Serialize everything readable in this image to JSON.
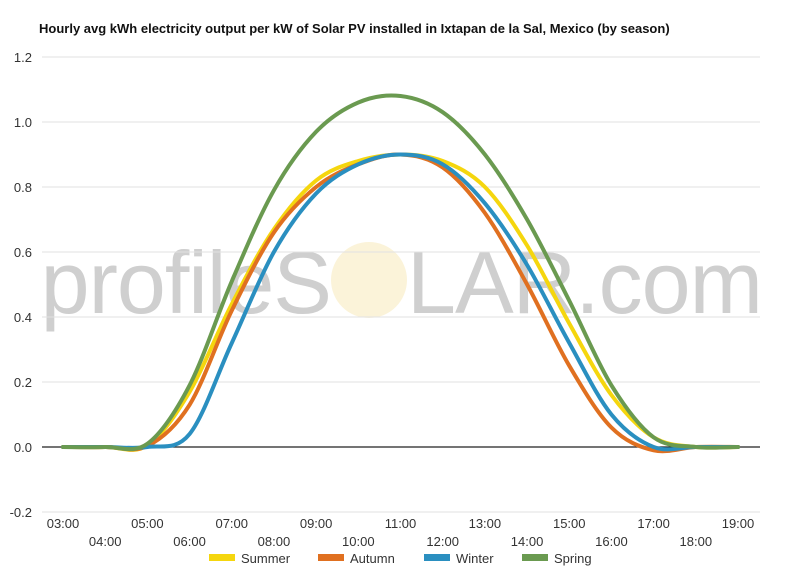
{
  "chart_data": {
    "type": "line",
    "title": "Hourly avg kWh electricity output per kW of Solar PV installed in Ixtapan de la Sal, Mexico (by season)",
    "x": [
      "03:00",
      "04:00",
      "05:00",
      "06:00",
      "07:00",
      "08:00",
      "09:00",
      "10:00",
      "11:00",
      "12:00",
      "13:00",
      "14:00",
      "15:00",
      "16:00",
      "17:00",
      "18:00",
      "19:00"
    ],
    "ylim": [
      -0.2,
      1.2
    ],
    "yticks": [
      "-0.2",
      "0.0",
      "0.2",
      "0.4",
      "0.6",
      "0.8",
      "1.0",
      "1.2"
    ],
    "grid": true,
    "legend_position": "bottom",
    "series": [
      {
        "name": "Summer",
        "color": "#f5d60e",
        "values": [
          0,
          0,
          0.005,
          0.17,
          0.44,
          0.67,
          0.82,
          0.88,
          0.9,
          0.88,
          0.8,
          0.62,
          0.38,
          0.16,
          0.03,
          0,
          0
        ]
      },
      {
        "name": "Autumn",
        "color": "#e07020",
        "values": [
          0,
          0,
          0.003,
          0.13,
          0.42,
          0.66,
          0.8,
          0.87,
          0.9,
          0.86,
          0.72,
          0.5,
          0.25,
          0.06,
          -0.01,
          0,
          0
        ]
      },
      {
        "name": "Winter",
        "color": "#2a8fc0",
        "values": [
          0,
          0,
          0,
          0.04,
          0.32,
          0.6,
          0.78,
          0.87,
          0.9,
          0.87,
          0.75,
          0.56,
          0.32,
          0.1,
          0,
          0,
          0
        ]
      },
      {
        "name": "Spring",
        "color": "#6a9a50",
        "values": [
          0,
          0,
          0.01,
          0.19,
          0.51,
          0.79,
          0.97,
          1.06,
          1.08,
          1.03,
          0.9,
          0.7,
          0.45,
          0.19,
          0.03,
          0,
          0
        ]
      }
    ]
  },
  "watermark": {
    "text_left": "profileS",
    "text_right": "LAR.com"
  }
}
